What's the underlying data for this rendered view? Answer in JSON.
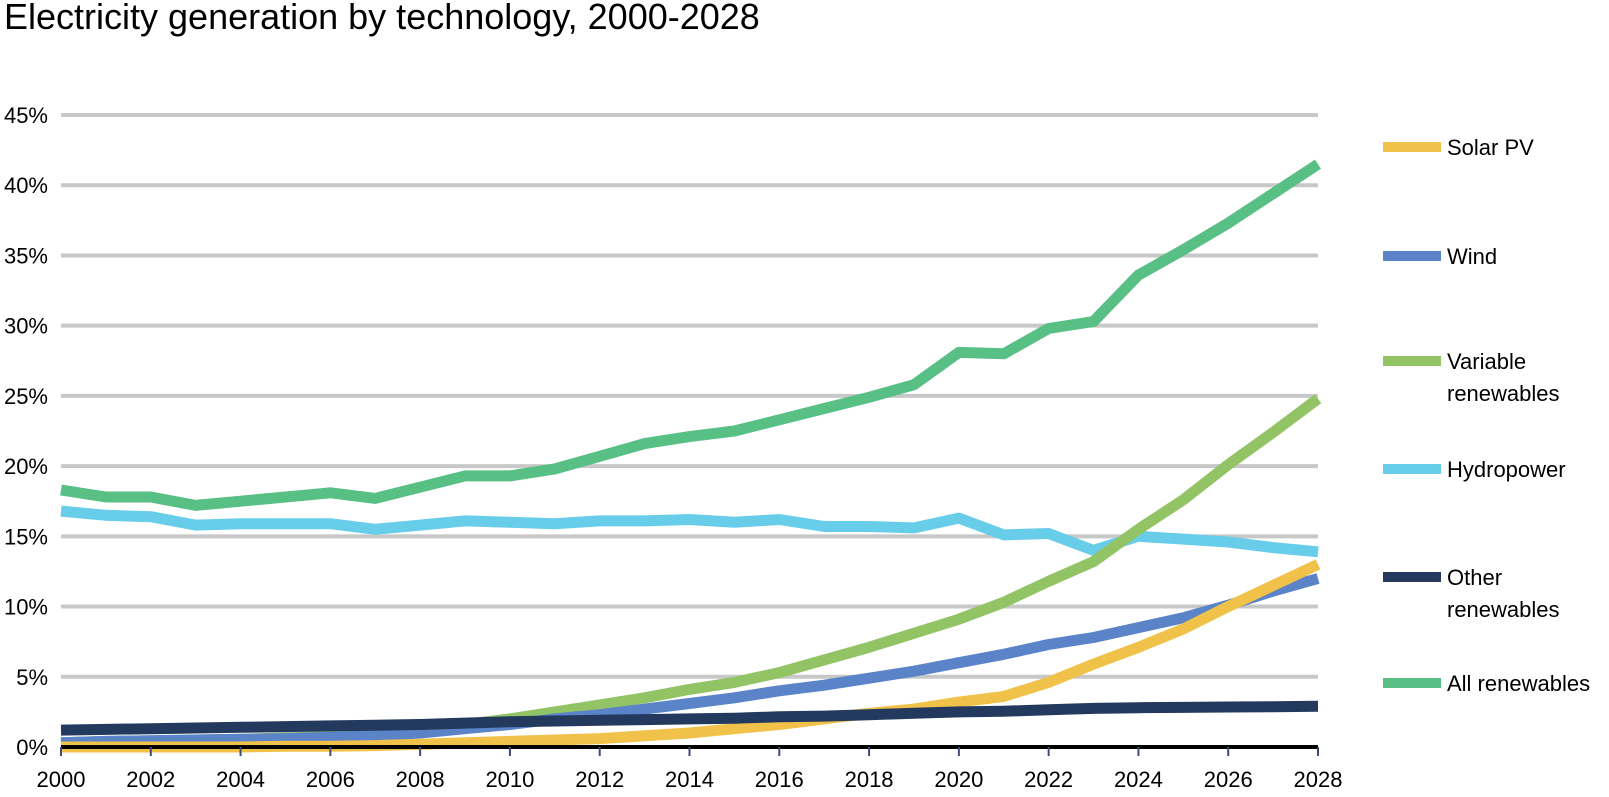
{
  "chart_data": {
    "type": "line",
    "title": "Electricity generation by technology, 2000-2028",
    "xlabel": "",
    "ylabel": "",
    "x": [
      2000,
      2001,
      2002,
      2003,
      2004,
      2005,
      2006,
      2007,
      2008,
      2009,
      2010,
      2011,
      2012,
      2013,
      2014,
      2015,
      2016,
      2017,
      2018,
      2019,
      2020,
      2021,
      2022,
      2023,
      2024,
      2025,
      2026,
      2027,
      2028
    ],
    "xlim": [
      2000,
      2028
    ],
    "ylim": [
      0,
      45
    ],
    "x_ticks": [
      "2000",
      "2002",
      "2004",
      "2006",
      "2008",
      "2010",
      "2012",
      "2014",
      "2016",
      "2018",
      "2020",
      "2022",
      "2024",
      "2026",
      "2028"
    ],
    "y_ticks": [
      "0%",
      "5%",
      "10%",
      "15%",
      "20%",
      "25%",
      "30%",
      "35%",
      "40%",
      "45%"
    ],
    "grid": true,
    "legend_position": "right",
    "series": [
      {
        "name": "Solar PV",
        "color": "#f1c24a",
        "values": [
          0,
          0,
          0,
          0,
          0,
          0.05,
          0.05,
          0.1,
          0.2,
          0.3,
          0.4,
          0.5,
          0.6,
          0.8,
          1.0,
          1.3,
          1.6,
          2.0,
          2.4,
          2.7,
          3.2,
          3.6,
          4.6,
          5.9,
          7.1,
          8.4,
          10,
          11.5,
          13
        ]
      },
      {
        "name": "Wind",
        "color": "#5a83c8",
        "values": [
          0.3,
          0.4,
          0.45,
          0.5,
          0.55,
          0.6,
          0.7,
          0.8,
          1.0,
          1.3,
          1.6,
          2.0,
          2.3,
          2.7,
          3.1,
          3.5,
          4.0,
          4.4,
          4.9,
          5.4,
          6.0,
          6.6,
          7.3,
          7.8,
          8.5,
          9.2,
          10.1,
          11.1,
          12.0
        ]
      },
      {
        "name": "Variable renewables",
        "color": "#92c466",
        "values": [
          0.3,
          0.4,
          0.45,
          0.5,
          0.55,
          0.65,
          0.75,
          0.9,
          1.2,
          1.6,
          2.0,
          2.5,
          3.0,
          3.5,
          4.1,
          4.6,
          5.3,
          6.2,
          7.1,
          8.1,
          9.1,
          10.3,
          11.8,
          13.2,
          15.5,
          17.6,
          20.1,
          22.4,
          24.8
        ]
      },
      {
        "name": "Hydropower",
        "color": "#68cde9",
        "values": [
          16.8,
          16.5,
          16.4,
          15.8,
          15.9,
          15.9,
          15.9,
          15.5,
          15.8,
          16.1,
          16.0,
          15.9,
          16.1,
          16.1,
          16.2,
          16.0,
          16.2,
          15.7,
          15.7,
          15.6,
          16.3,
          15.1,
          15.2,
          14.0,
          15.0,
          14.8,
          14.6,
          14.2,
          13.9
        ]
      },
      {
        "name": "Other renewables",
        "color": "#233a5e",
        "values": [
          1.2,
          1.25,
          1.3,
          1.35,
          1.4,
          1.45,
          1.5,
          1.55,
          1.6,
          1.7,
          1.8,
          1.85,
          1.9,
          1.95,
          2.0,
          2.05,
          2.15,
          2.2,
          2.3,
          2.4,
          2.5,
          2.55,
          2.65,
          2.75,
          2.8,
          2.82,
          2.85,
          2.87,
          2.9
        ]
      },
      {
        "name": "All renewables",
        "color": "#58bf85",
        "values": [
          18.3,
          17.8,
          17.8,
          17.2,
          17.5,
          17.8,
          18.1,
          17.7,
          18.5,
          19.3,
          19.3,
          19.8,
          20.7,
          21.6,
          22.1,
          22.5,
          23.3,
          24.1,
          24.9,
          25.8,
          28.1,
          28.0,
          29.8,
          30.3,
          33.6,
          35.4,
          37.3,
          39.4,
          41.5
        ]
      }
    ]
  }
}
